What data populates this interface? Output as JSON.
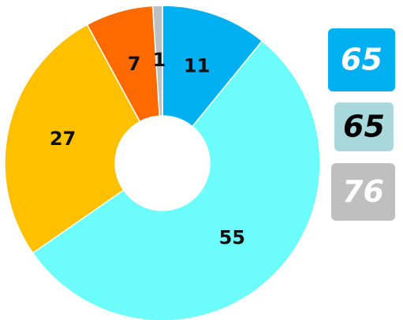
{
  "chart_data": {
    "type": "donut",
    "values": [
      11,
      55,
      27,
      7,
      1
    ],
    "colors": [
      "#00b0f0",
      "#6dfcfc",
      "#ffc000",
      "#ff6a00",
      "#c0c0c0"
    ]
  },
  "badges": [
    {
      "value": 65,
      "color": "#00b0f0",
      "text_color": "#ffffff"
    },
    {
      "value": 65,
      "color": "#a8d8dc",
      "text_color": "#000000"
    },
    {
      "value": 76,
      "color": "#bfbfbf",
      "text_color": "#ffffff"
    }
  ]
}
